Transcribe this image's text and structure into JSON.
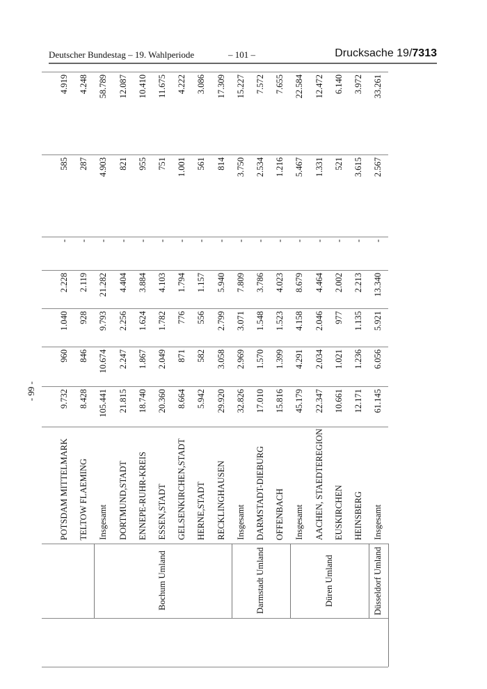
{
  "header": {
    "left": "Deutscher Bundestag – 19. Wahlperiode",
    "center": "– 101 –",
    "right_prefix": "Drucksache 19/",
    "right_number": "7313"
  },
  "page_marker": "- 99 -",
  "table": {
    "rows": [
      {
        "name": "POTSDAM MITTELMARK",
        "values": [
          "9.732",
          "960",
          "1.040",
          "2.228",
          "-",
          "585",
          "4.919"
        ]
      },
      {
        "name": "TELTOW FLAEMING",
        "values": [
          "8.428",
          "846",
          "928",
          "2.119",
          "-",
          "287",
          "4.248"
        ]
      },
      {
        "name": "Insgesamt",
        "values": [
          "105.441",
          "10.674",
          "9.793",
          "21.282",
          "-",
          "4.903",
          "58.789"
        ]
      },
      {
        "name": "DORTMUND,STADT",
        "values": [
          "21.815",
          "2.247",
          "2.256",
          "4.404",
          "-",
          "821",
          "12.087"
        ]
      },
      {
        "name": "ENNEPE-RUHR-KREIS",
        "values": [
          "18.740",
          "1.867",
          "1.624",
          "3.884",
          "-",
          "955",
          "10.410"
        ]
      },
      {
        "name": "ESSEN,STADT",
        "values": [
          "20.360",
          "2.049",
          "1.782",
          "4.103",
          "-",
          "751",
          "11.675"
        ]
      },
      {
        "name": "GELSENKIRCHEN,STADT",
        "values": [
          "8.664",
          "871",
          "776",
          "1.794",
          "-",
          "1.001",
          "4.222"
        ]
      },
      {
        "name": "HERNE,STADT",
        "values": [
          "5.942",
          "582",
          "556",
          "1.157",
          "-",
          "561",
          "3.086"
        ]
      },
      {
        "name": "RECKLINGHAUSEN",
        "values": [
          "29.920",
          "3.058",
          "2.799",
          "5.940",
          "-",
          "814",
          "17.309"
        ]
      },
      {
        "name": "Insgesamt",
        "values": [
          "32.826",
          "2.969",
          "3.071",
          "7.809",
          "-",
          "3.750",
          "15.227"
        ]
      },
      {
        "name": "DARMSTADT-DIEBURG",
        "values": [
          "17.010",
          "1.570",
          "1.548",
          "3.786",
          "-",
          "2.534",
          "7.572"
        ]
      },
      {
        "name": "OFFENBACH",
        "values": [
          "15.816",
          "1.399",
          "1.523",
          "4.023",
          "-",
          "1.216",
          "7.655"
        ]
      },
      {
        "name": "Insgesamt",
        "values": [
          "45.179",
          "4.291",
          "4.158",
          "8.679",
          "-",
          "5.467",
          "22.584"
        ]
      },
      {
        "name": "AACHEN, STAEDTEREGION",
        "values": [
          "22.347",
          "2.034",
          "2.046",
          "4.464",
          "-",
          "1.331",
          "12.472"
        ]
      },
      {
        "name": "EUSKIRCHEN",
        "values": [
          "10.661",
          "1.021",
          "977",
          "2.002",
          "-",
          "521",
          "6.140"
        ]
      },
      {
        "name": "HEINSBERG",
        "values": [
          "12.171",
          "1.236",
          "1.135",
          "2.213",
          "-",
          "3.615",
          "3.972"
        ]
      },
      {
        "name": "Insgesamt",
        "values": [
          "61.145",
          "6.056",
          "5.921",
          "13.340",
          "-",
          "2.567",
          "33.261"
        ]
      }
    ],
    "regions": [
      {
        "label": "",
        "first_row": 0,
        "last_row": 1
      },
      {
        "label": "Bochum Umland",
        "first_row": 2,
        "last_row": 8
      },
      {
        "label": "Darmstadt Umland",
        "first_row": 9,
        "last_row": 11
      },
      {
        "label": "Düren Umland",
        "first_row": 12,
        "last_row": 15
      },
      {
        "label": "Düsseldorf Umland",
        "first_row": 16,
        "last_row": 16
      }
    ]
  }
}
